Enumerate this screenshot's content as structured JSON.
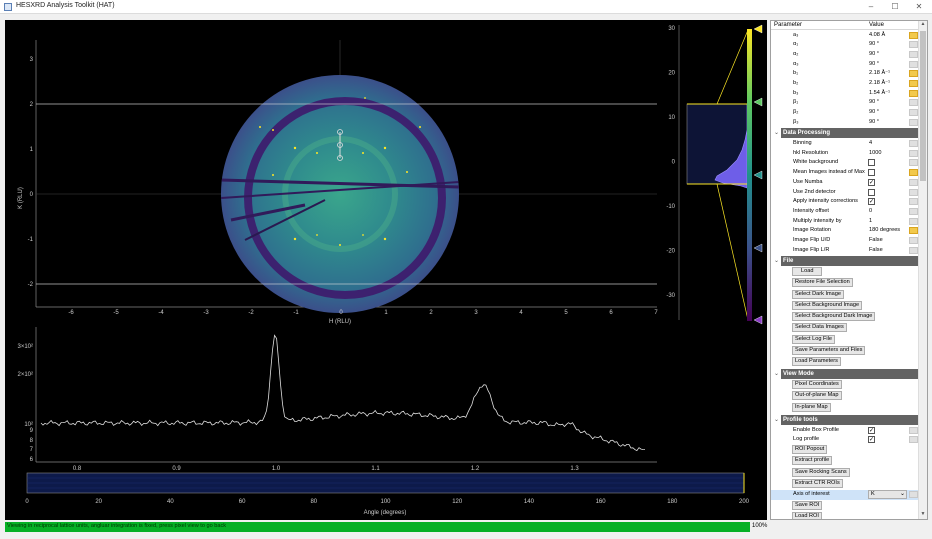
{
  "window": {
    "title": "HESXRD Analysis Toolkit (HAT)",
    "controls": {
      "minimize": "–",
      "maximize": "☐",
      "close": "✕"
    }
  },
  "map": {
    "x_label": "H (RLU)",
    "y_label": "K (RLU)",
    "x_ticks": [
      "-6",
      "-5",
      "-4",
      "-3",
      "-2",
      "-1",
      "0",
      "1",
      "2",
      "3",
      "4",
      "5",
      "6",
      "7"
    ],
    "y_ticks": [
      "3",
      "2",
      "1",
      "0",
      "-1",
      "-2"
    ]
  },
  "histogram": {
    "ticks": [
      "30",
      "20",
      "10",
      "0",
      "-10",
      "-20",
      "-30"
    ],
    "colormap": "viridis"
  },
  "profile": {
    "y_ticks": [
      "3×10²",
      "2×10²",
      "10²",
      "9",
      "8",
      "7",
      "6"
    ],
    "x_ticks": [
      "0.8",
      "0.9",
      "1.0",
      "1.1",
      "1.2",
      "1.3"
    ]
  },
  "region": {
    "x_label": "Angle (degrees)",
    "x_ticks": [
      "0",
      "20",
      "40",
      "60",
      "80",
      "100",
      "120",
      "140",
      "160",
      "180",
      "200"
    ]
  },
  "params": {
    "header_parameter": "Parameter",
    "header_value": "Value",
    "lattice": [
      {
        "label": "a₃",
        "value": "4.08 Å"
      },
      {
        "label": "α₁",
        "value": "90 °"
      },
      {
        "label": "α₂",
        "value": "90 °"
      },
      {
        "label": "α₃",
        "value": "90 °"
      },
      {
        "label": "b₁",
        "value": "2.18 Å⁻¹"
      },
      {
        "label": "b₂",
        "value": "2.18 Å⁻¹"
      },
      {
        "label": "b₃",
        "value": "1.54 Å⁻¹"
      },
      {
        "label": "β₁",
        "value": "90 °"
      },
      {
        "label": "β₂",
        "value": "90 °"
      },
      {
        "label": "β₃",
        "value": "90 °"
      }
    ],
    "data_processing_title": "Data Processing",
    "data_processing": [
      {
        "label": "Binning",
        "value": "4"
      },
      {
        "label": "hkl Resolution",
        "value": "1000"
      },
      {
        "label": "White background",
        "check": ""
      },
      {
        "label": "Mean Images instead of Max",
        "check": ""
      },
      {
        "label": "Use Numba",
        "check": "✓"
      },
      {
        "label": "Use 2nd detector",
        "check": ""
      },
      {
        "label": "Apply intensity corrections",
        "check": "✓"
      },
      {
        "label": "Intensity offset",
        "value": "0"
      },
      {
        "label": "Multiply intensity by",
        "value": "1"
      },
      {
        "label": "Image Rotation",
        "value": "180 degrees"
      },
      {
        "label": "Image Flip U/D",
        "value": "False"
      },
      {
        "label": "Image Flip L/R",
        "value": "False"
      }
    ],
    "file_title": "File",
    "file_buttons": [
      "Load",
      "Restore File Selection",
      "Select Dark Image",
      "Select Background Image",
      "Select Background Dark Image",
      "Select Data Images",
      "Select Log File",
      "Save Parameters and Files",
      "Load Parameters"
    ],
    "view_title": "View Mode",
    "view_buttons": [
      "Pixel Coordinates",
      "Out-of-plane Map",
      "In-plane Map"
    ],
    "profile_title": "Profile tools",
    "profile_tools": [
      {
        "label": "Enable Box Profile",
        "check": "✓"
      },
      {
        "label": "Log profile",
        "check": "✓"
      }
    ],
    "profile_buttons": [
      "ROI Popout",
      "Extract profile",
      "Save Rocking Scans",
      "Extract CTR ROIs"
    ],
    "axis_label": "Axis of interest",
    "axis_value": "K",
    "roi_buttons": [
      "Save ROI",
      "Load ROI"
    ]
  },
  "status": {
    "message": "Viewing in reciprocal lattice units, angluar integration is fixed, press pixel view to go back",
    "progress": 1.0,
    "percent": "100%"
  }
}
